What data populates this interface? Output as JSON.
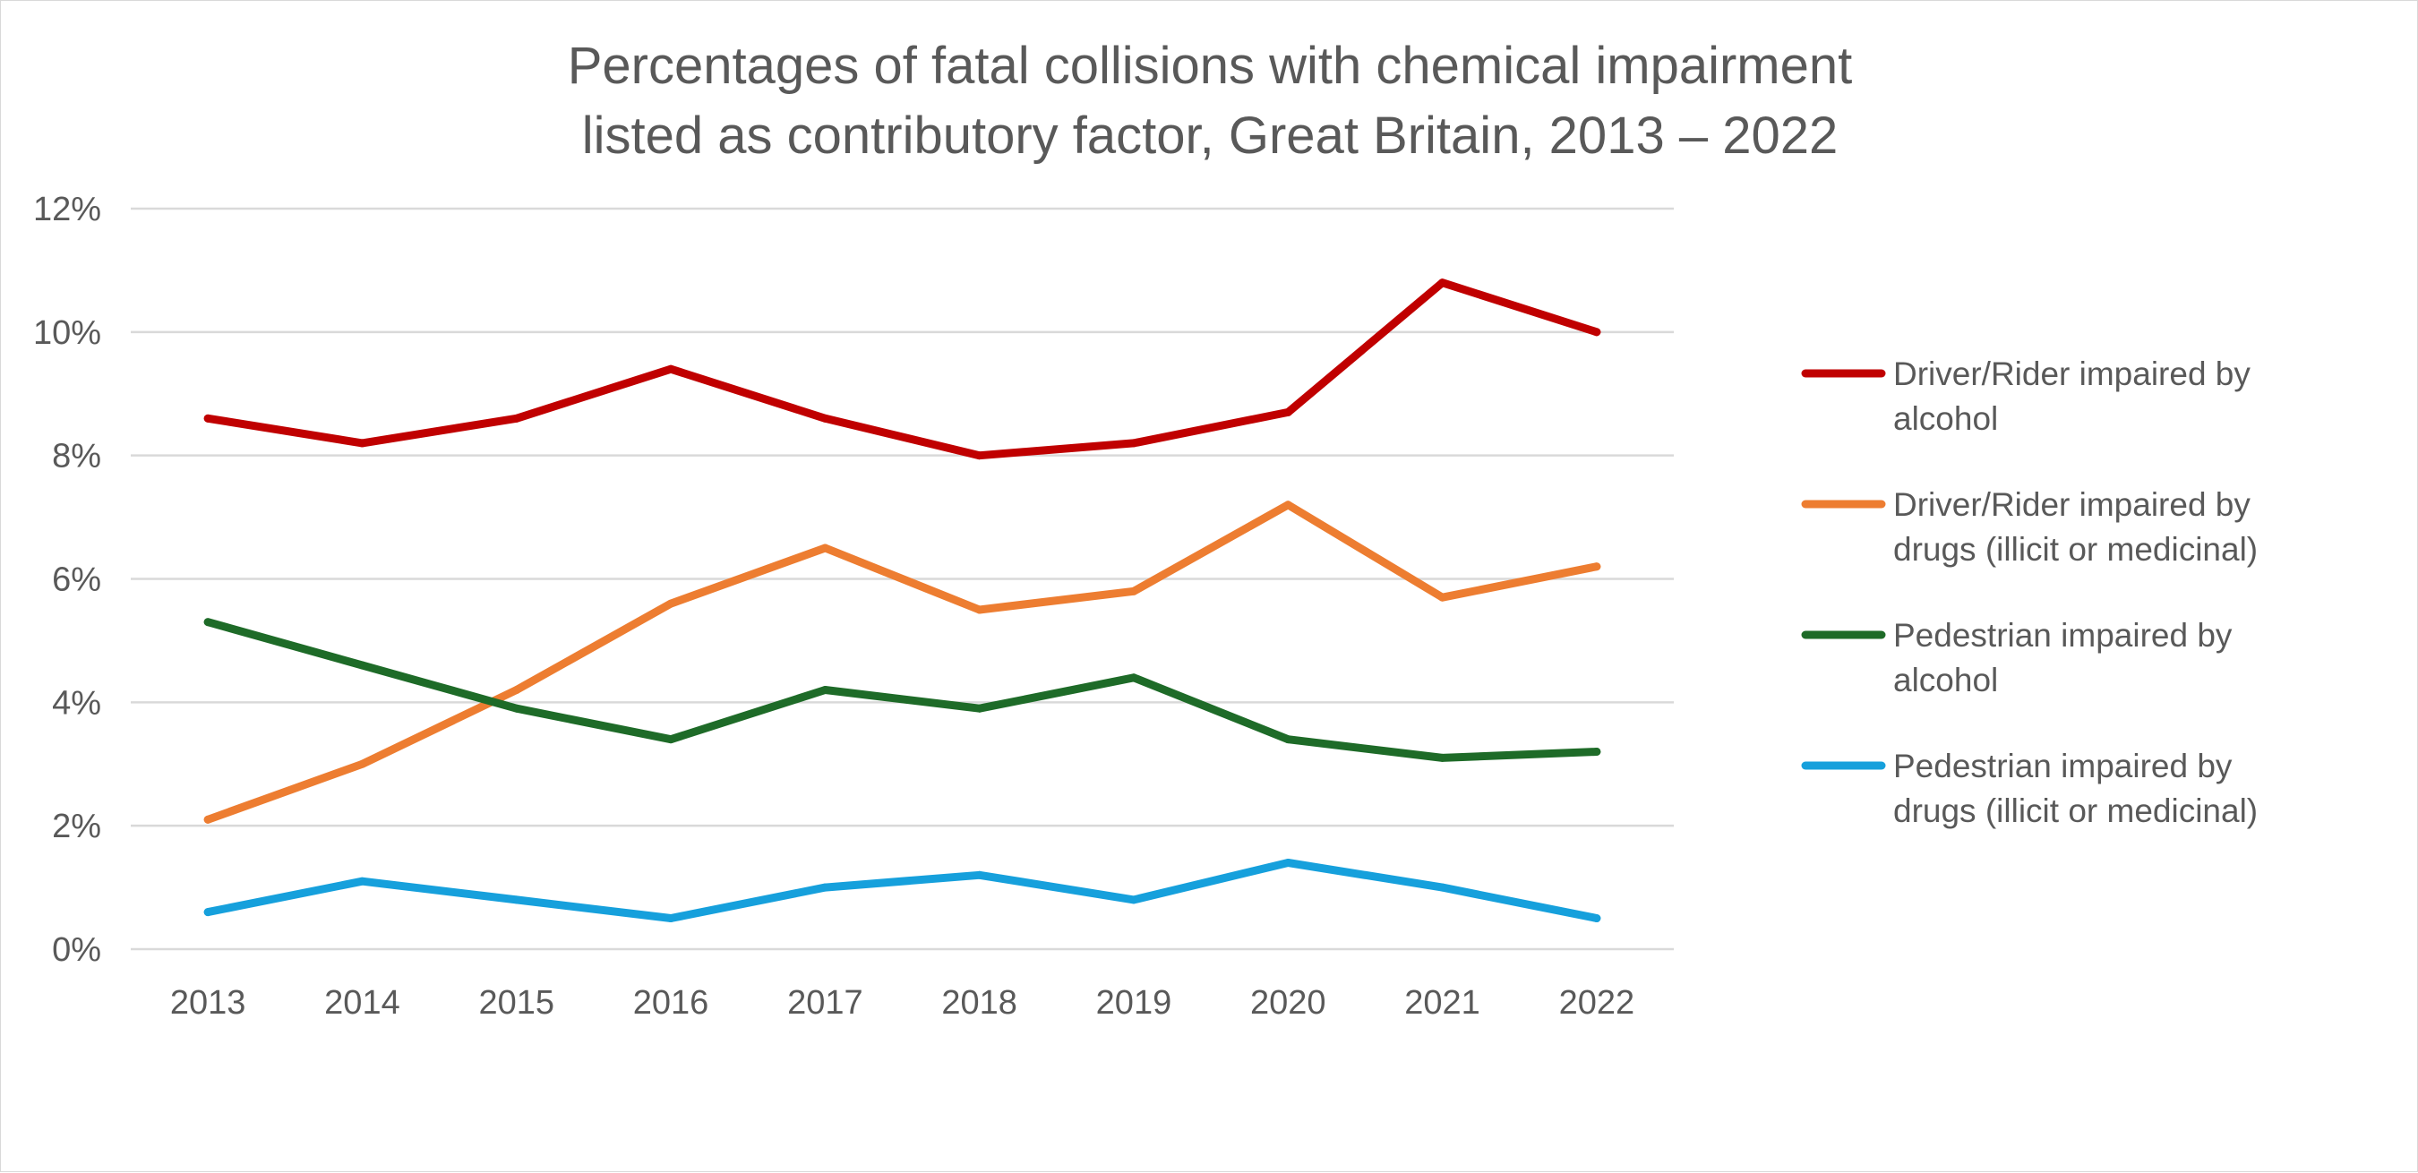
{
  "chart_data": {
    "type": "line",
    "title": "Percentages of fatal collisions with chemical impairment listed as contributory factor, Great Britain, 2013 – 2022",
    "title_lines": [
      "Percentages of fatal collisions with chemical impairment",
      "listed as contributory factor, Great Britain, 2013 – 2022"
    ],
    "categories": [
      "2013",
      "2014",
      "2015",
      "2016",
      "2017",
      "2018",
      "2019",
      "2020",
      "2021",
      "2022"
    ],
    "y_ticks": [
      0,
      2,
      4,
      6,
      8,
      10,
      12
    ],
    "y_tick_labels": [
      "0%",
      "2%",
      "4%",
      "6%",
      "8%",
      "10%",
      "12%"
    ],
    "ylim": [
      0,
      12
    ],
    "xlabel": "",
    "ylabel": "",
    "grid": true,
    "legend_position": "right",
    "series": [
      {
        "name": "Driver/Rider impaired by alcohol",
        "legend_lines": [
          "Driver/Rider impaired by",
          "alcohol"
        ],
        "color": "#C00000",
        "values": [
          8.6,
          8.2,
          8.6,
          9.4,
          8.6,
          8.0,
          8.2,
          8.7,
          10.8,
          10.0
        ]
      },
      {
        "name": "Driver/Rider impaired by drugs (illicit or medicinal)",
        "legend_lines": [
          "Driver/Rider impaired by",
          "drugs (illicit or medicinal)"
        ],
        "color": "#ED7D31",
        "values": [
          2.1,
          3.0,
          4.2,
          5.6,
          6.5,
          5.5,
          5.8,
          7.2,
          5.7,
          6.2
        ]
      },
      {
        "name": "Pedestrian impaired by alcohol",
        "legend_lines": [
          "Pedestrian impaired by",
          "alcohol"
        ],
        "color": "#1E6B28",
        "values": [
          5.3,
          4.6,
          3.9,
          3.4,
          4.2,
          3.9,
          4.4,
          3.4,
          3.1,
          3.2
        ]
      },
      {
        "name": "Pedestrian impaired by drugs (illicit or medicinal)",
        "legend_lines": [
          "Pedestrian impaired by",
          "drugs (illicit or medicinal)"
        ],
        "color": "#16A0DC",
        "values": [
          0.6,
          1.1,
          0.8,
          0.5,
          1.0,
          1.2,
          0.8,
          1.4,
          1.0,
          0.5
        ]
      }
    ]
  }
}
